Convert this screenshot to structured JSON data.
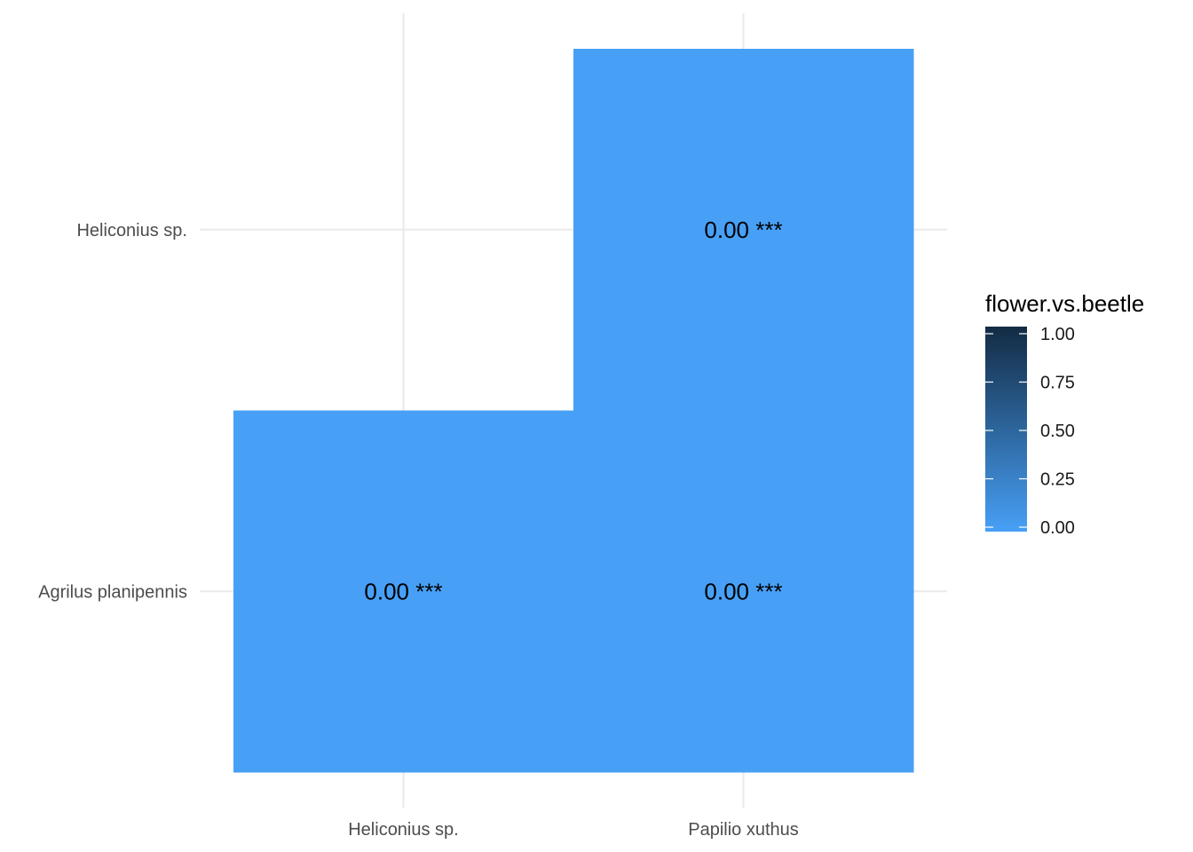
{
  "chart_data": {
    "type": "heatmap",
    "title": "",
    "xlabel": "",
    "ylabel": "",
    "x_categories": [
      "Heliconius sp.",
      "Papilio xuthus"
    ],
    "y_categories": [
      "Agrilus planipennis",
      "Heliconius sp."
    ],
    "cells": [
      {
        "x": "Heliconius sp.",
        "y": "Agrilus planipennis",
        "value": 0.0,
        "label": "0.00 ***"
      },
      {
        "x": "Papilio xuthus",
        "y": "Agrilus planipennis",
        "value": 0.0,
        "label": "0.00 ***"
      },
      {
        "x": "Papilio xuthus",
        "y": "Heliconius sp.",
        "value": 0.0,
        "label": "0.00 ***"
      }
    ],
    "legend": {
      "title": "flower.vs.beetle",
      "position": "right",
      "range": [
        0,
        1
      ],
      "ticks": [
        1.0,
        0.75,
        0.5,
        0.25,
        0.0
      ],
      "tick_labels": [
        "1.00",
        "0.75",
        "0.50",
        "0.25",
        "0.00"
      ],
      "color_low": "#47a0f6",
      "color_high": "#132b43"
    },
    "grid": true,
    "grid_color": "#ebebeb"
  }
}
